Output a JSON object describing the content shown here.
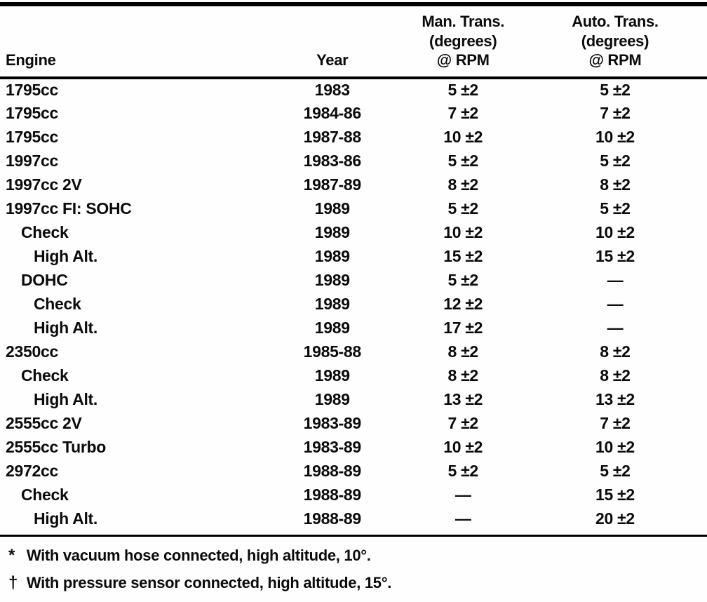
{
  "table": {
    "header": {
      "engine": "Engine",
      "year": "Year",
      "man": [
        "Man. Trans.",
        "(degrees)",
        "@ RPM"
      ],
      "auto": [
        "Auto. Trans.",
        "(degrees)",
        "@ RPM"
      ]
    },
    "rows": [
      {
        "engine": "1795cc",
        "indent": 0,
        "year": "1983",
        "man": "5 ±2",
        "auto": "5 ±2"
      },
      {
        "engine": "1795cc",
        "indent": 0,
        "year": "1984-86",
        "man": "7 ±2",
        "auto": "7 ±2"
      },
      {
        "engine": "1795cc",
        "indent": 0,
        "year": "1987-88",
        "man": "10 ±2",
        "auto": "10 ±2"
      },
      {
        "engine": "1997cc",
        "indent": 0,
        "year": "1983-86",
        "man": "5 ±2",
        "auto": "5 ±2"
      },
      {
        "engine": "1997cc 2V",
        "indent": 0,
        "year": "1987-89",
        "man": "8 ±2",
        "auto": "8 ±2"
      },
      {
        "engine": "1997cc FI: SOHC",
        "indent": 0,
        "year": "1989",
        "man": "5 ±2",
        "auto": "5 ±2"
      },
      {
        "engine": "Check",
        "indent": 1,
        "year": "1989",
        "man": "10 ±2",
        "auto": "10 ±2"
      },
      {
        "engine": "High Alt.",
        "indent": 2,
        "year": "1989",
        "man": "15 ±2",
        "auto": "15 ±2"
      },
      {
        "engine": "DOHC",
        "indent": 1,
        "year": "1989",
        "man": "5 ±2",
        "auto": "—"
      },
      {
        "engine": "Check",
        "indent": 2,
        "year": "1989",
        "man": "12 ±2",
        "auto": "—"
      },
      {
        "engine": "High Alt.",
        "indent": 2,
        "year": "1989",
        "man": "17 ±2",
        "auto": "—"
      },
      {
        "engine": "2350cc",
        "indent": 0,
        "year": "1985-88",
        "man": "8 ±2",
        "auto": "8 ±2"
      },
      {
        "engine": "Check",
        "indent": 1,
        "year": "1989",
        "man": "8 ±2",
        "auto": "8 ±2"
      },
      {
        "engine": "High Alt.",
        "indent": 2,
        "year": "1989",
        "man": "13 ±2",
        "auto": "13 ±2"
      },
      {
        "engine": "2555cc 2V",
        "indent": 0,
        "year": "1983-89",
        "man": "7 ±2",
        "auto": "7 ±2"
      },
      {
        "engine": "2555cc Turbo",
        "indent": 0,
        "year": "1983-89",
        "man": "10 ±2",
        "auto": "10 ±2"
      },
      {
        "engine": "2972cc",
        "indent": 0,
        "year": "1988-89",
        "man": "5 ±2",
        "auto": "5 ±2"
      },
      {
        "engine": "Check",
        "indent": 1,
        "year": "1988-89",
        "man": "—",
        "auto": "15 ±2"
      },
      {
        "engine": "High Alt.",
        "indent": 2,
        "year": "1988-89",
        "man": "—",
        "auto": "20 ±2"
      }
    ],
    "footnotes": [
      {
        "marker": "*",
        "text": "With vacuum hose connected, high altitude, 10°."
      },
      {
        "marker": "†",
        "text": "With pressure sensor connected, high altitude, 15°."
      }
    ]
  }
}
